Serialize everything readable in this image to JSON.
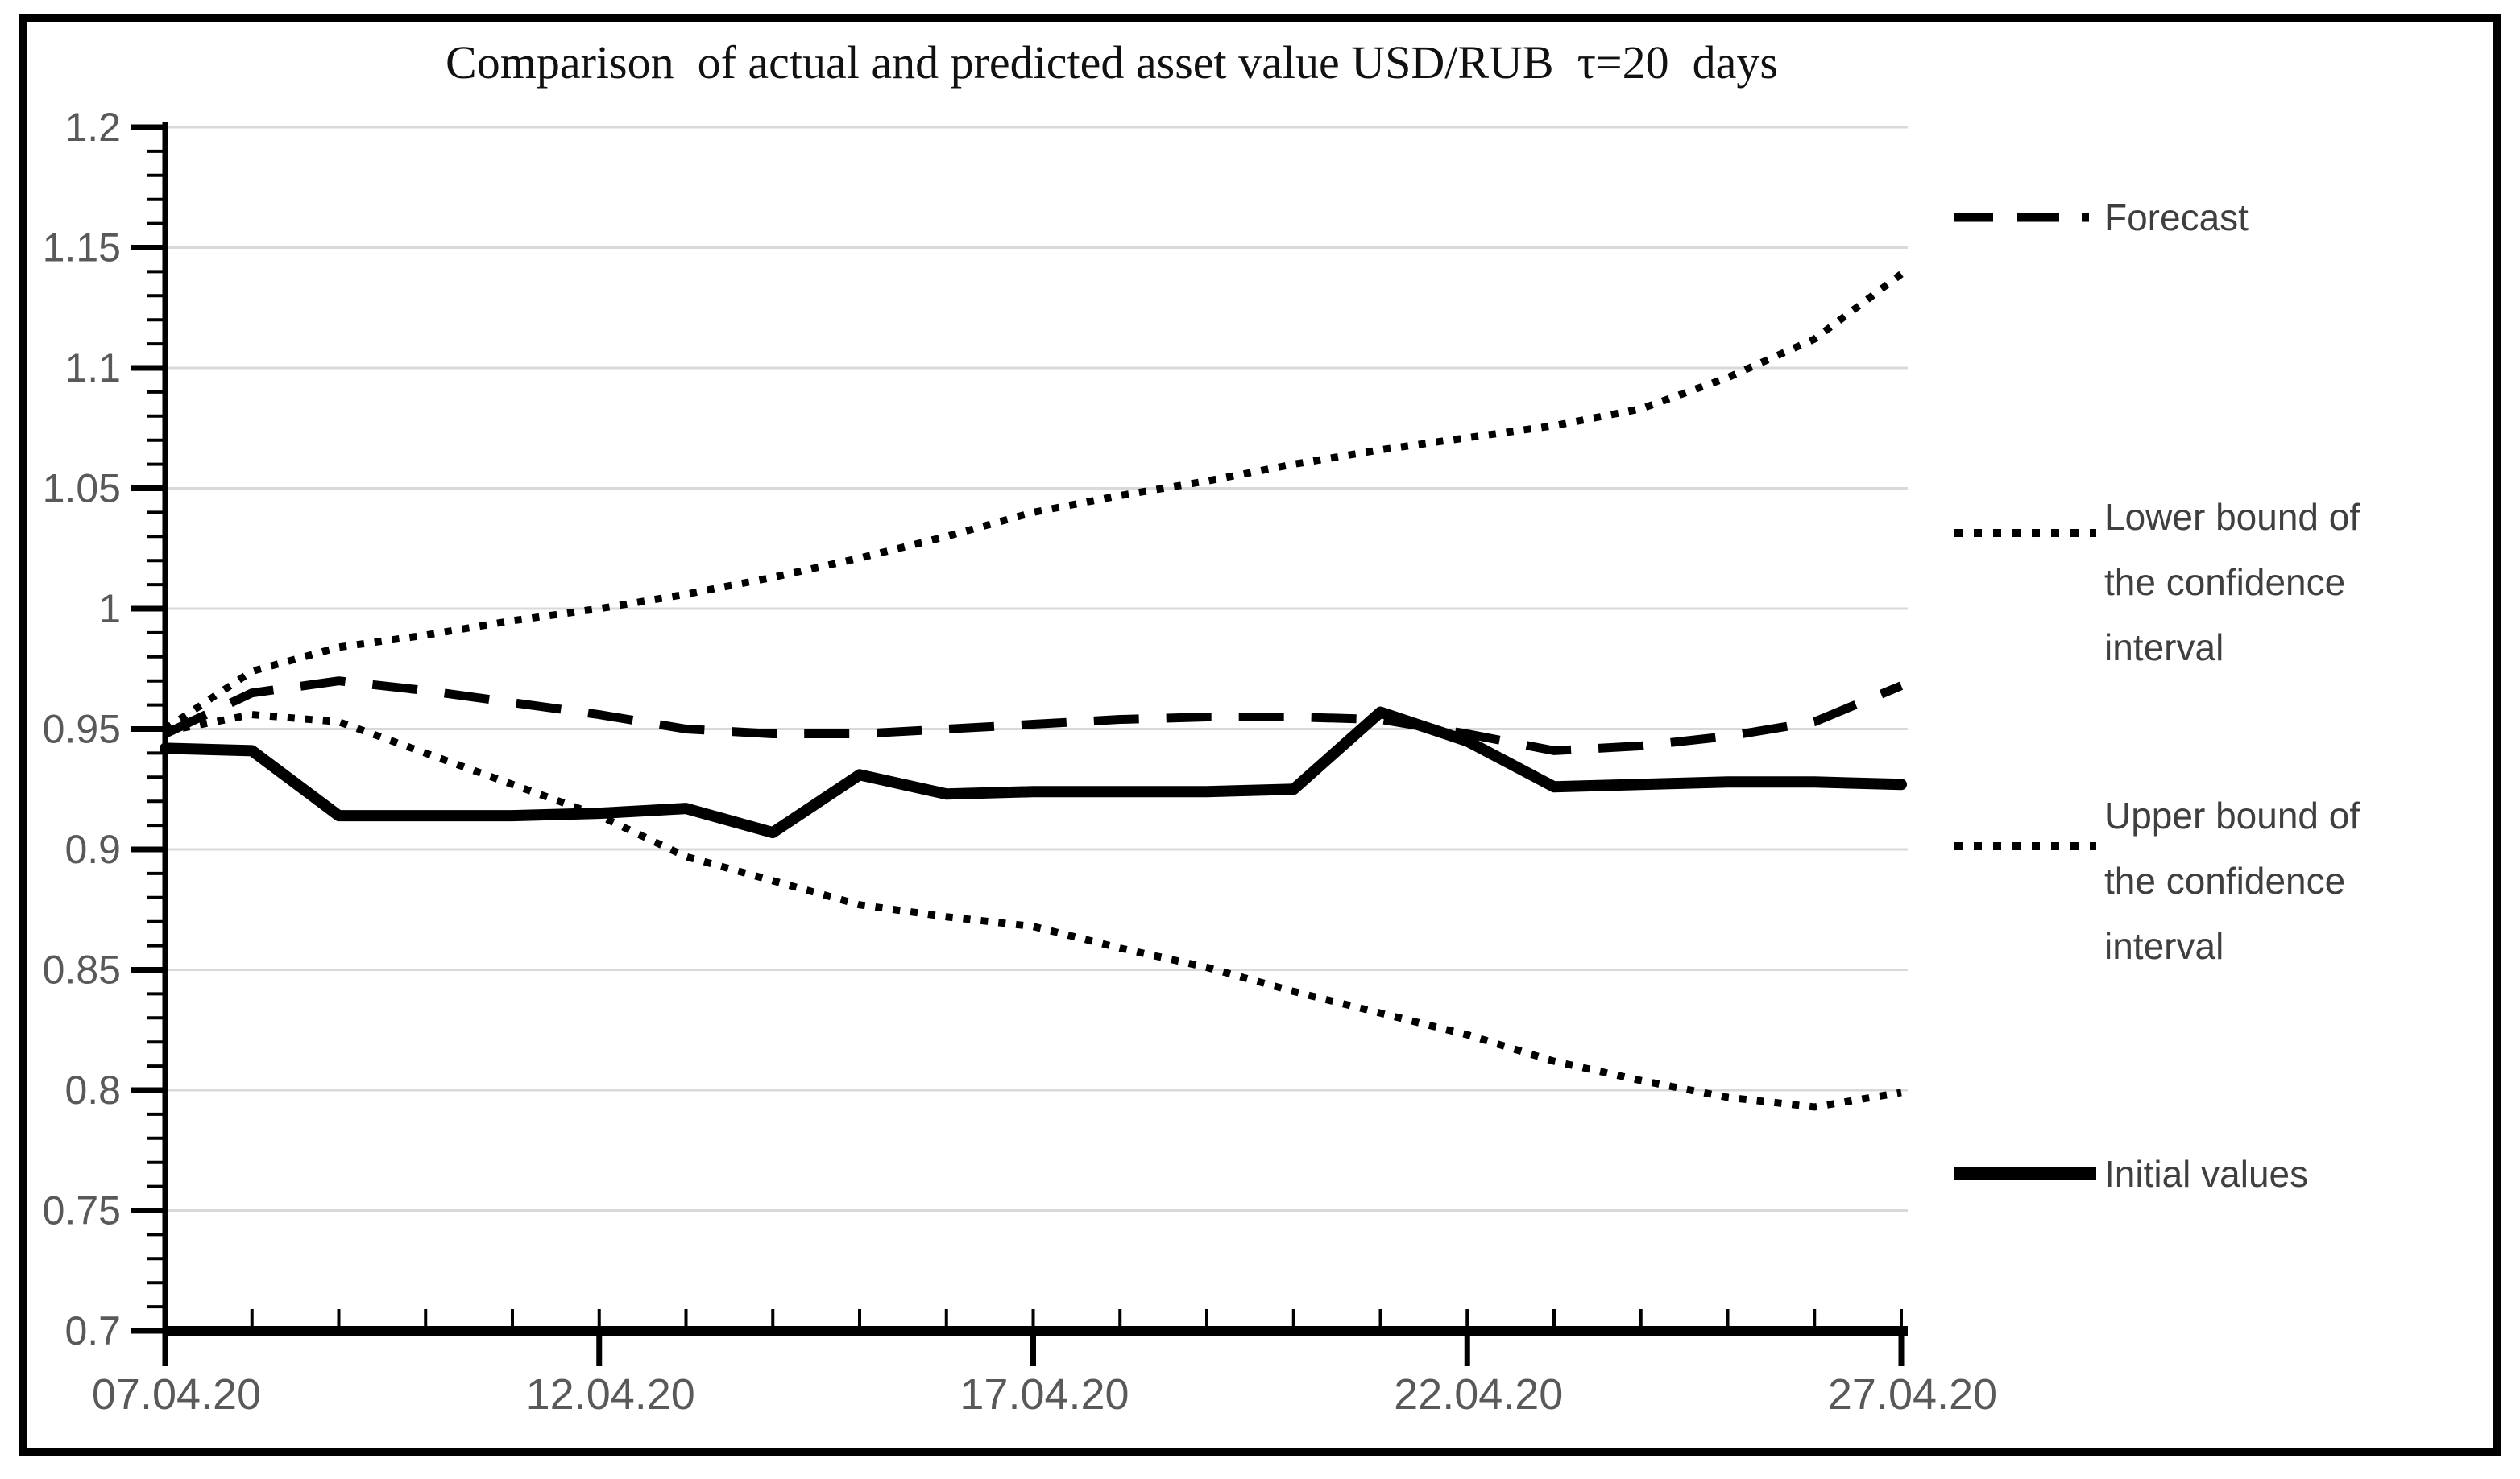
{
  "page": {
    "background": "#ffffff",
    "border_color": "#000000"
  },
  "colors": {
    "grid": "#d9d9d9",
    "axis": "#000000",
    "tick_label": "#595959",
    "legend_text": "#3f3f3f",
    "series": "#000000"
  },
  "chart_data": {
    "type": "line",
    "title": "Comparison  of actual and predicted asset value USD/RUB  τ=20  days",
    "grid": "horizontal",
    "legend_position": "right",
    "ylim": [
      0.7,
      1.2
    ],
    "y_minor_step": 0.01,
    "y_ticks": [
      1.2,
      1.15,
      1.1,
      1.05,
      1.0,
      0.95,
      0.9,
      0.85,
      0.8,
      0.75,
      0.7
    ],
    "y_tick_labels": [
      "1.2",
      "1.15",
      "1.1",
      "1.05",
      "1",
      "0.95",
      "0.9",
      "0.85",
      "0.8",
      "0.75",
      "0.7"
    ],
    "x": [
      "07.04.20",
      "08.04.20",
      "09.04.20",
      "10.04.20",
      "11.04.20",
      "12.04.20",
      "13.04.20",
      "14.04.20",
      "15.04.20",
      "16.04.20",
      "17.04.20",
      "18.04.20",
      "19.04.20",
      "20.04.20",
      "21.04.20",
      "22.04.20",
      "23.04.20",
      "24.04.20",
      "25.04.20",
      "26.04.20",
      "27.04.20"
    ],
    "x_tick_days": [
      0,
      5,
      10,
      15,
      20
    ],
    "x_tick_labels": [
      "07.04.20",
      "12.04.20",
      "17.04.20",
      "22.04.20",
      "27.04.20"
    ],
    "series": [
      {
        "name": "Upper bound of the confidence interval",
        "style": "dotted",
        "color": "#000000",
        "values": [
          0.95,
          0.974,
          0.984,
          0.989,
          0.995,
          1.0,
          1.006,
          1.013,
          1.021,
          1.03,
          1.04,
          1.047,
          1.053,
          1.06,
          1.066,
          1.071,
          1.076,
          1.083,
          1.096,
          1.112,
          1.139
        ]
      },
      {
        "name": "Lower bound of the confidence interval",
        "style": "dotted",
        "color": "#000000",
        "values": [
          0.949,
          0.956,
          0.953,
          0.94,
          0.927,
          0.914,
          0.897,
          0.887,
          0.877,
          0.872,
          0.868,
          0.859,
          0.851,
          0.841,
          0.832,
          0.823,
          0.812,
          0.804,
          0.797,
          0.793,
          0.799
        ]
      },
      {
        "name": "Forecast",
        "style": "dashed",
        "color": "#000000",
        "values": [
          0.948,
          0.965,
          0.97,
          0.966,
          0.961,
          0.956,
          0.95,
          0.948,
          0.948,
          0.95,
          0.952,
          0.954,
          0.955,
          0.955,
          0.954,
          0.948,
          0.941,
          0.943,
          0.947,
          0.953,
          0.968
        ]
      },
      {
        "name": "Initial values",
        "style": "solid",
        "color": "#000000",
        "values": [
          0.942,
          0.941,
          0.914,
          0.914,
          0.914,
          0.915,
          0.917,
          0.907,
          0.931,
          0.923,
          0.924,
          0.924,
          0.924,
          0.925,
          0.957,
          0.945,
          0.926,
          0.927,
          0.928,
          0.928,
          0.927
        ]
      }
    ]
  },
  "legend": {
    "items": [
      {
        "label": "Forecast",
        "style": "dashed"
      },
      {
        "label": "Lower bound of\nthe confidence\ninterval",
        "style": "dotted"
      },
      {
        "label": "Upper bound of\nthe confidence\ninterval",
        "style": "dotted"
      },
      {
        "label": "Initial values",
        "style": "solid"
      }
    ]
  }
}
